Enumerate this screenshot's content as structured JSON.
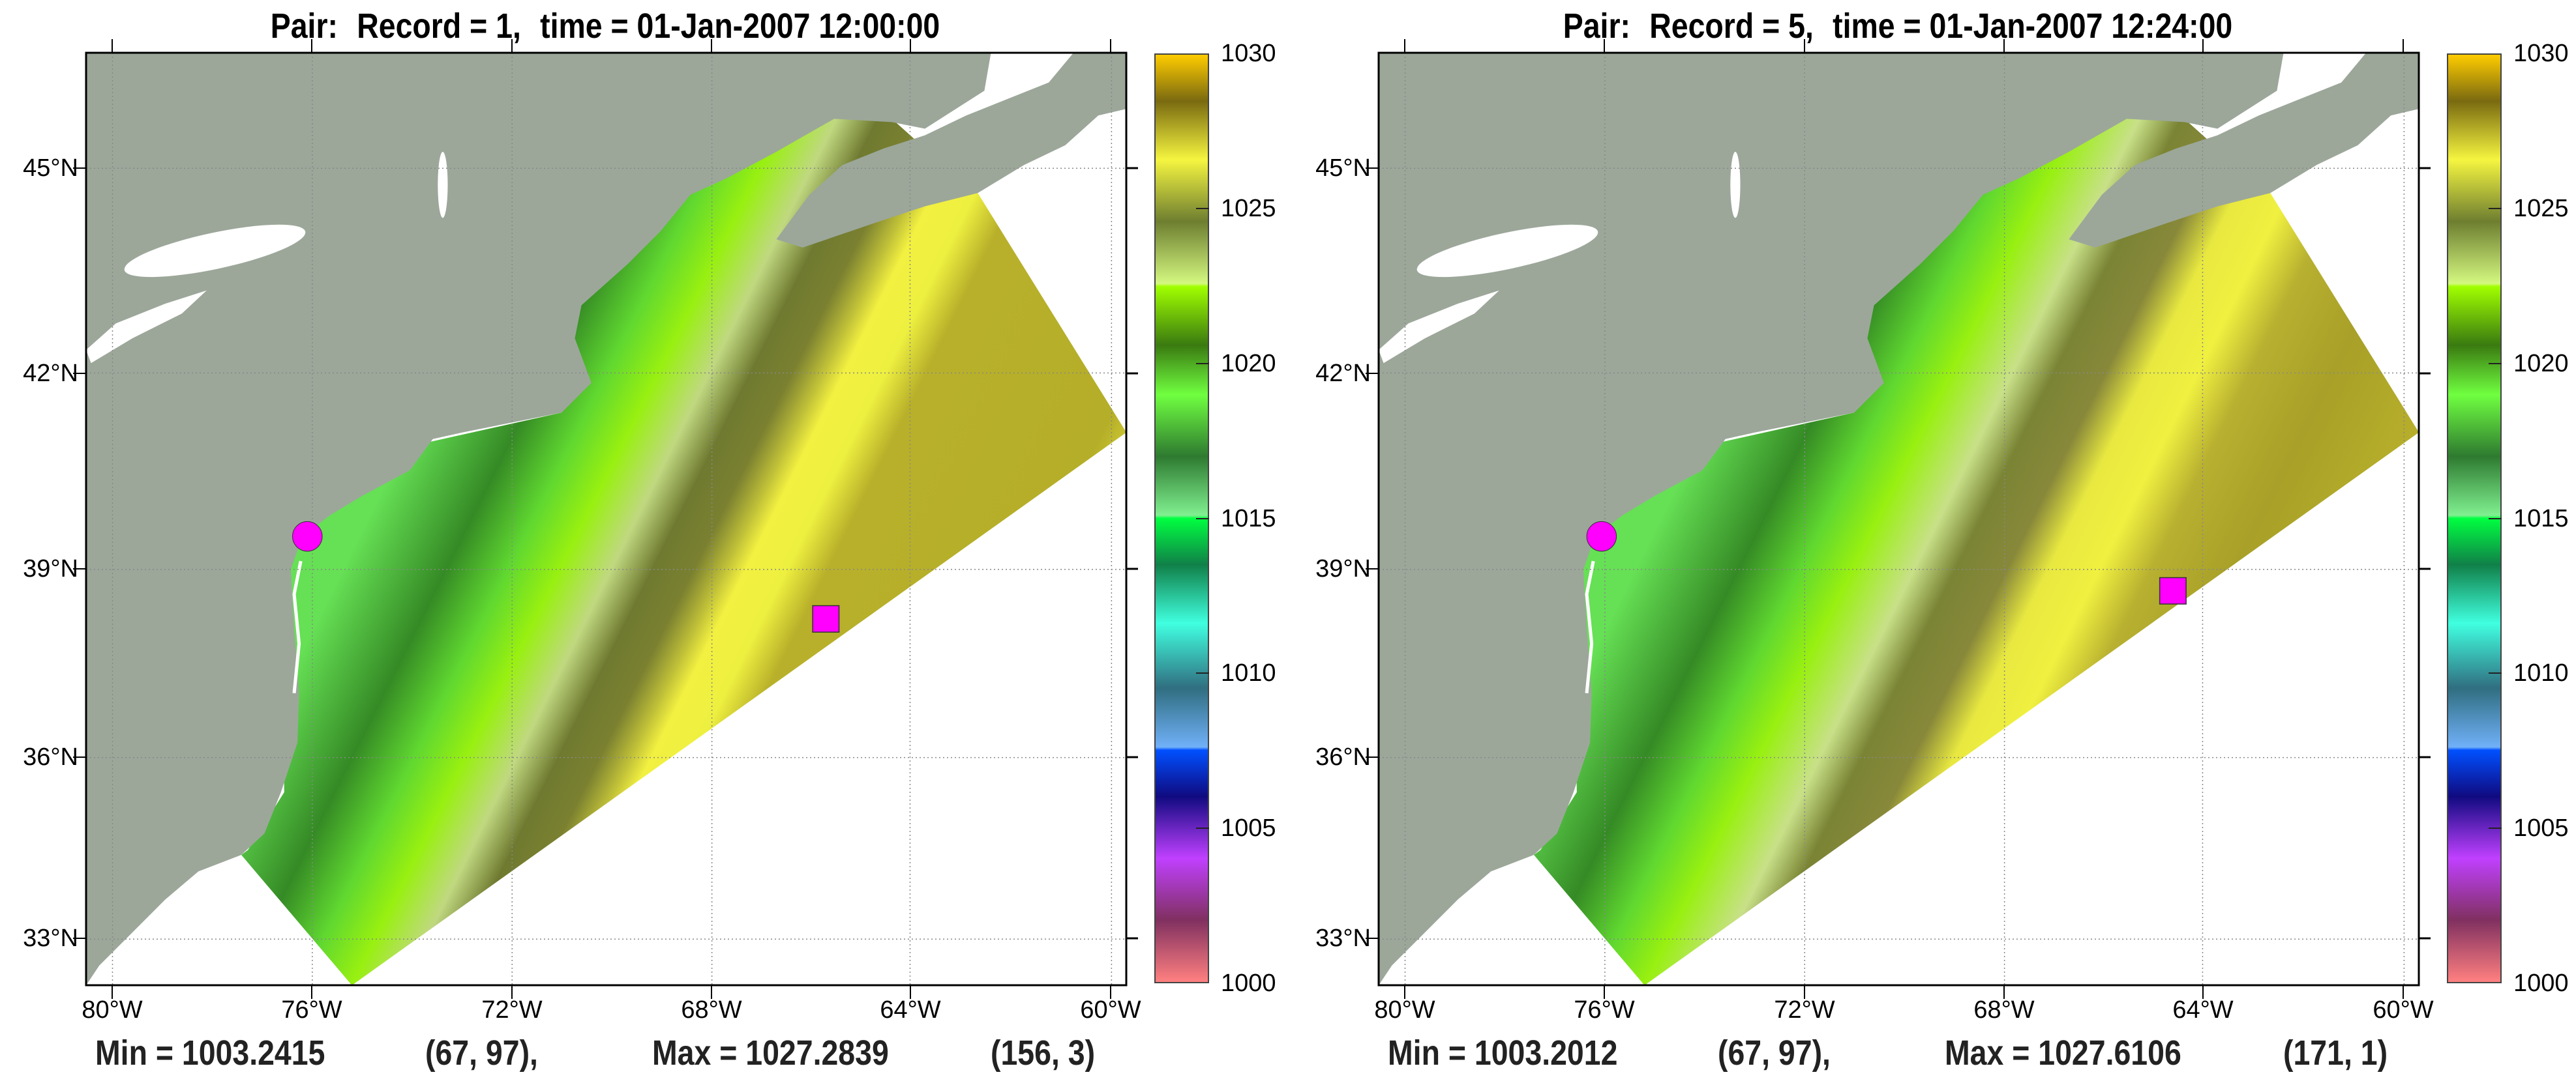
{
  "panels": [
    {
      "title": {
        "pair": "Pair:",
        "record": "Record = 1,",
        "time": "time = 01-Jan-2007 12:00:00"
      },
      "stats": {
        "min": "Min = 1003.2415",
        "min_loc": "(67, 97),",
        "max": "Max = 1027.2839",
        "max_loc": "(156, 3)"
      }
    },
    {
      "title": {
        "pair": "Pair:",
        "record": "Record = 5,",
        "time": "time = 01-Jan-2007 12:24:00"
      },
      "stats": {
        "min": "Min = 1003.2012",
        "min_loc": "(67, 97),",
        "max": "Max = 1027.6106",
        "max_loc": "(171, 1)"
      }
    }
  ],
  "axes": {
    "x_ticks": [
      "80°W",
      "76°W",
      "72°W",
      "68°W",
      "64°W",
      "60°W"
    ],
    "y_ticks": [
      "45°N",
      "42°N",
      "39°N",
      "36°N",
      "33°N"
    ]
  },
  "colorbar": {
    "ticks": [
      "1030",
      "1025",
      "1020",
      "1015",
      "1010",
      "1005",
      "1000"
    ],
    "range": [
      1000,
      1030
    ],
    "stops": [
      {
        "value": 1030,
        "color": "#ffcc00"
      },
      {
        "value": 1028.5,
        "color": "#7a6a10"
      },
      {
        "value": 1026.6,
        "color": "#f5f540"
      },
      {
        "value": 1024.6,
        "color": "#6e7e30"
      },
      {
        "value": 1022.6,
        "color": "#d4f880"
      },
      {
        "value": 1022.5,
        "color": "#a0ff00"
      },
      {
        "value": 1020.6,
        "color": "#3a7a10"
      },
      {
        "value": 1019,
        "color": "#70ff40"
      },
      {
        "value": 1017,
        "color": "#2e7a30"
      },
      {
        "value": 1015.1,
        "color": "#80f090"
      },
      {
        "value": 1015,
        "color": "#00ff40"
      },
      {
        "value": 1013.5,
        "color": "#108048"
      },
      {
        "value": 1011.6,
        "color": "#40ffe0"
      },
      {
        "value": 1009.5,
        "color": "#306e80"
      },
      {
        "value": 1007.6,
        "color": "#70b0f8"
      },
      {
        "value": 1007.5,
        "color": "#0050ff"
      },
      {
        "value": 1006,
        "color": "#100a80"
      },
      {
        "value": 1004,
        "color": "#c040ff"
      },
      {
        "value": 1002,
        "color": "#803060"
      },
      {
        "value": 1000,
        "color": "#ff8080"
      }
    ]
  },
  "colors": {
    "land": "#9ca79a",
    "marker": "#ff00ff"
  }
}
